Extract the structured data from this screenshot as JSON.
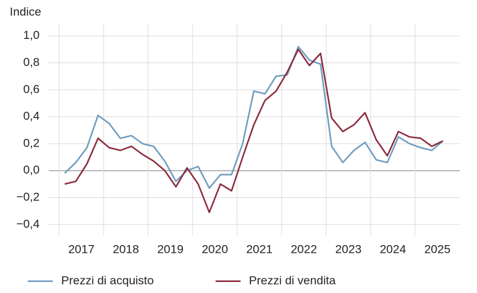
{
  "chart_data": {
    "type": "line",
    "y_axis_label": "Indice",
    "x": [
      2017.125,
      2017.375,
      2017.625,
      2017.875,
      2018.125,
      2018.375,
      2018.625,
      2018.875,
      2019.125,
      2019.375,
      2019.625,
      2019.875,
      2020.125,
      2020.375,
      2020.625,
      2020.875,
      2021.125,
      2021.375,
      2021.625,
      2021.875,
      2022.125,
      2022.375,
      2022.625,
      2022.875,
      2023.125,
      2023.375,
      2023.625,
      2023.875,
      2024.125,
      2024.375,
      2024.625,
      2024.875,
      2025.125,
      2025.375,
      2025.625
    ],
    "series": [
      {
        "name": "Prezzi di acquisto",
        "color": "#6f9cbf",
        "values": [
          -0.02,
          0.06,
          0.17,
          0.41,
          0.35,
          0.24,
          0.26,
          0.2,
          0.18,
          0.07,
          -0.08,
          0.0,
          0.03,
          -0.13,
          -0.03,
          -0.03,
          0.2,
          0.59,
          0.57,
          0.7,
          0.71,
          0.92,
          0.82,
          0.79,
          0.18,
          0.06,
          0.15,
          0.21,
          0.08,
          0.06,
          0.25,
          0.2,
          0.17,
          0.15,
          0.22
        ]
      },
      {
        "name": "Prezzi di vendita",
        "color": "#8b2a3c",
        "values": [
          -0.1,
          -0.08,
          0.05,
          0.24,
          0.17,
          0.15,
          0.18,
          0.12,
          0.07,
          0.0,
          -0.12,
          0.02,
          -0.1,
          -0.31,
          -0.1,
          -0.15,
          0.1,
          0.34,
          0.52,
          0.59,
          0.73,
          0.9,
          0.78,
          0.87,
          0.39,
          0.29,
          0.34,
          0.43,
          0.23,
          0.11,
          0.29,
          0.25,
          0.24,
          0.18,
          0.22
        ]
      }
    ],
    "xlim": [
      2017,
      2026
    ],
    "xticks": [
      2017,
      2018,
      2019,
      2020,
      2021,
      2022,
      2023,
      2024,
      2025
    ],
    "ylim": [
      -0.45,
      1.05
    ],
    "yticks": [
      {
        "value": 1.0,
        "label": "1,0"
      },
      {
        "value": 0.8,
        "label": "0,8"
      },
      {
        "value": 0.6,
        "label": "0,6"
      },
      {
        "value": 0.4,
        "label": "0,4"
      },
      {
        "value": 0.2,
        "label": "0,2"
      },
      {
        "value": 0.0,
        "label": "0,0"
      },
      {
        "value": -0.2,
        "label": "−0,2"
      },
      {
        "value": -0.4,
        "label": "−0,4"
      }
    ],
    "grid": true
  }
}
